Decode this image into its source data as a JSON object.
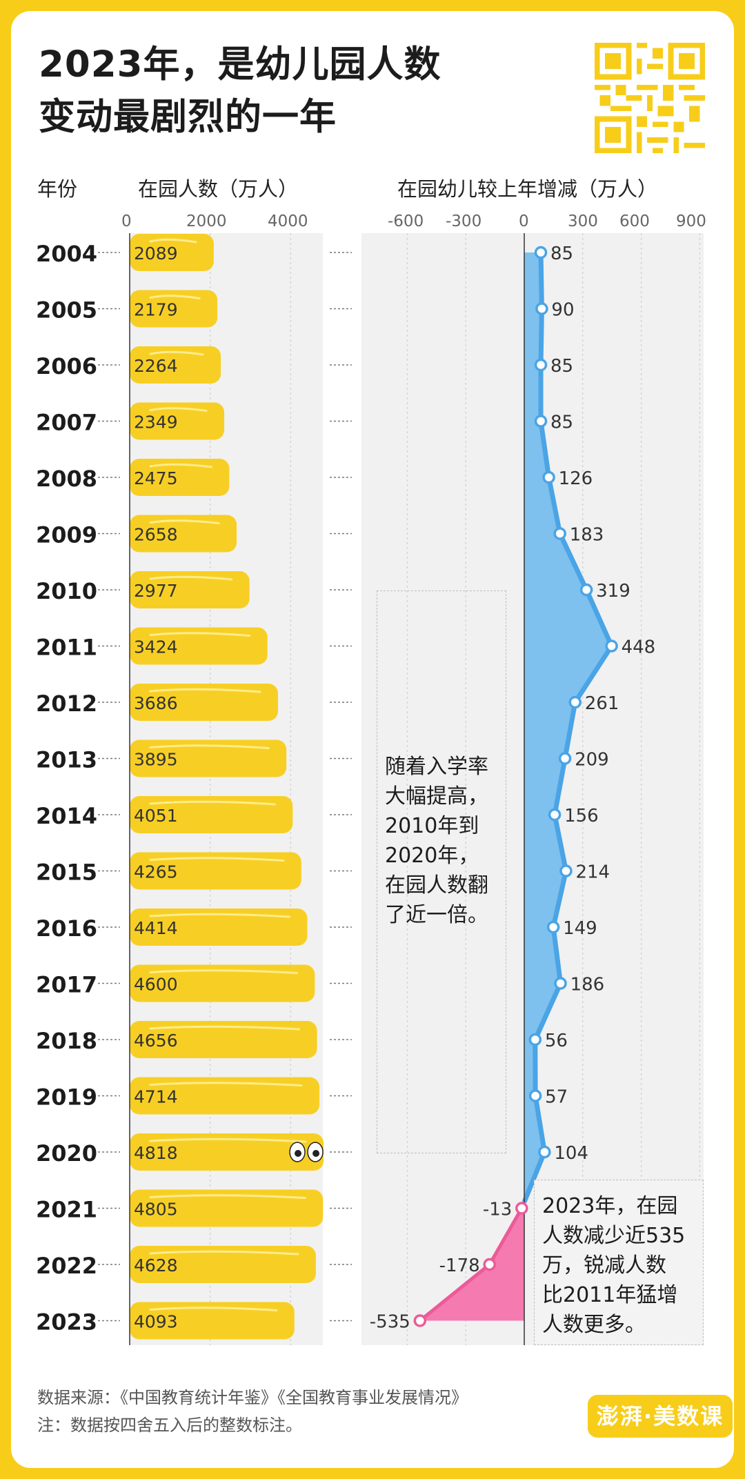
{
  "title": {
    "line1": "2023年，是幼儿园人数",
    "line2": "变动最剧烈的一年"
  },
  "headers": {
    "year": "年份",
    "enrollment": "在园人数（万人）",
    "change": "在园幼儿较上年增减（万人）"
  },
  "annotations": {
    "left_note": [
      "随着入学率",
      "大幅提高，",
      "2010年到",
      "2020年，",
      "在园人数翻",
      "了近一倍。"
    ],
    "right_note": [
      "2023年，在园",
      "人数减少近535",
      "万，锐减人数",
      "比2011年猛增",
      "人数更多。"
    ]
  },
  "footer": {
    "source": "数据来源：《中国教育统计年鉴》《全国教育事业发展情况》",
    "note": "注：数据按四舍五入后的整数标注。"
  },
  "brand": {
    "label": "澎湃·美数课"
  },
  "colors": {
    "yellow": "#f7cd19",
    "bar": "#f7cf24",
    "blue": "#7ec0ee",
    "blue_line": "#4aa4e6",
    "pink": "#f47ab0",
    "pink_line": "#ec5a98",
    "panel": "#f1f1f1"
  },
  "chart_data": [
    {
      "type": "bar",
      "orientation": "horizontal",
      "title": "在园人数（万人）",
      "categories": [
        "2004",
        "2005",
        "2006",
        "2007",
        "2008",
        "2009",
        "2010",
        "2011",
        "2012",
        "2013",
        "2014",
        "2015",
        "2016",
        "2017",
        "2018",
        "2019",
        "2020",
        "2021",
        "2022",
        "2023"
      ],
      "values": [
        2089,
        2179,
        2264,
        2349,
        2475,
        2658,
        2977,
        3424,
        3686,
        3895,
        4051,
        4265,
        4414,
        4600,
        4656,
        4714,
        4818,
        4805,
        4628,
        4093
      ],
      "xlim": [
        0,
        4800
      ],
      "xticks": [
        "0",
        "2000",
        "4000"
      ],
      "grid": true
    },
    {
      "type": "area",
      "orientation": "vertical",
      "title": "在园幼儿较上年增减（万人）",
      "categories": [
        "2004",
        "2005",
        "2006",
        "2007",
        "2008",
        "2009",
        "2010",
        "2011",
        "2012",
        "2013",
        "2014",
        "2015",
        "2016",
        "2017",
        "2018",
        "2019",
        "2020",
        "2021",
        "2022",
        "2023"
      ],
      "values": [
        85,
        90,
        85,
        85,
        126,
        183,
        319,
        448,
        261,
        209,
        156,
        214,
        149,
        186,
        56,
        57,
        104,
        -13,
        -178,
        -535
      ],
      "xlim": [
        -770,
        920
      ],
      "xticks": [
        "-600",
        "-300",
        "0",
        "300",
        "600",
        "900"
      ],
      "grid": true
    }
  ]
}
